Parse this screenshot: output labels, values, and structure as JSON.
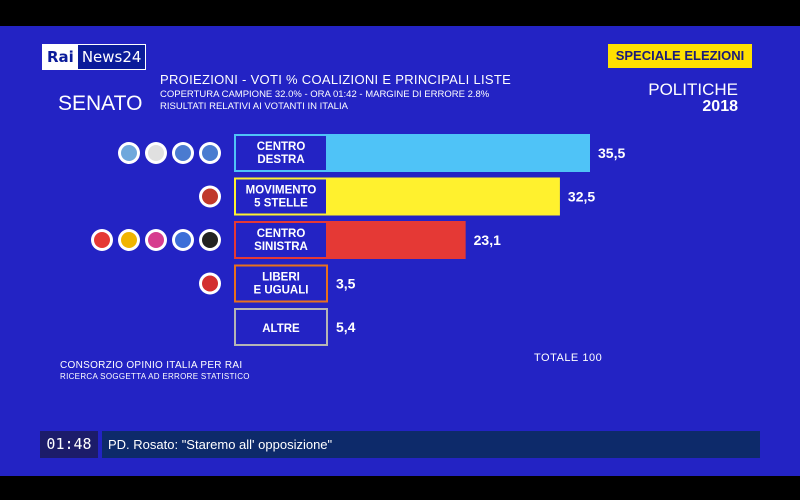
{
  "header": {
    "logo_rai": "Rai",
    "logo_news": "News24",
    "badge": "SPECIALE ELEZIONI",
    "senato": "SENATO",
    "line1": "PROIEZIONI - VOTI % COALIZIONI E PRINCIPALI LISTE",
    "line2": "COPERTURA CAMPIONE 32.0% - ORA 01:42 - MARGINE DI ERRORE 2.8%",
    "line3": "RISULTATI RELATIVI AI VOTANTI IN ITALIA",
    "politiche": "POLITICHE",
    "year": "2018"
  },
  "chart_data": {
    "type": "bar",
    "orientation": "horizontal",
    "categories": [
      [
        "CENTRO",
        "DESTRA"
      ],
      [
        "MOVIMENTO",
        "5 STELLE"
      ],
      [
        "CENTRO",
        "SINISTRA"
      ],
      [
        "LIBERI",
        "E UGUALI"
      ],
      [
        "ALTRE"
      ]
    ],
    "values": [
      35.5,
      32.5,
      23.1,
      3.5,
      5.4
    ],
    "value_labels": [
      "35,5",
      "32,5",
      "23,1",
      "3,5",
      "5,4"
    ],
    "colors": [
      "#4fc3f7",
      "#fff12e",
      "#e53935",
      "#e8701e",
      "#b5b5b5"
    ],
    "logo_colors": [
      [
        "#6fa8dc",
        "#e0e0e0",
        "#4a7bd0",
        "#4a7bd0"
      ],
      [
        "#c0392b"
      ],
      [
        "#e53935",
        "#f0b400",
        "#d63d8f",
        "#3c6ed8",
        "#222222"
      ],
      [
        "#d32f2f"
      ],
      []
    ]
  },
  "footer": {
    "source": "CONSORZIO OPINIO ITALIA PER RAI",
    "source_note": "RICERCA SOGGETTA AD ERRORE STATISTICO",
    "totale": "TOTALE   100"
  },
  "ticker": {
    "time": "01:48",
    "headline": "PD. Rosato: \"Staremo all' opposizione\""
  }
}
